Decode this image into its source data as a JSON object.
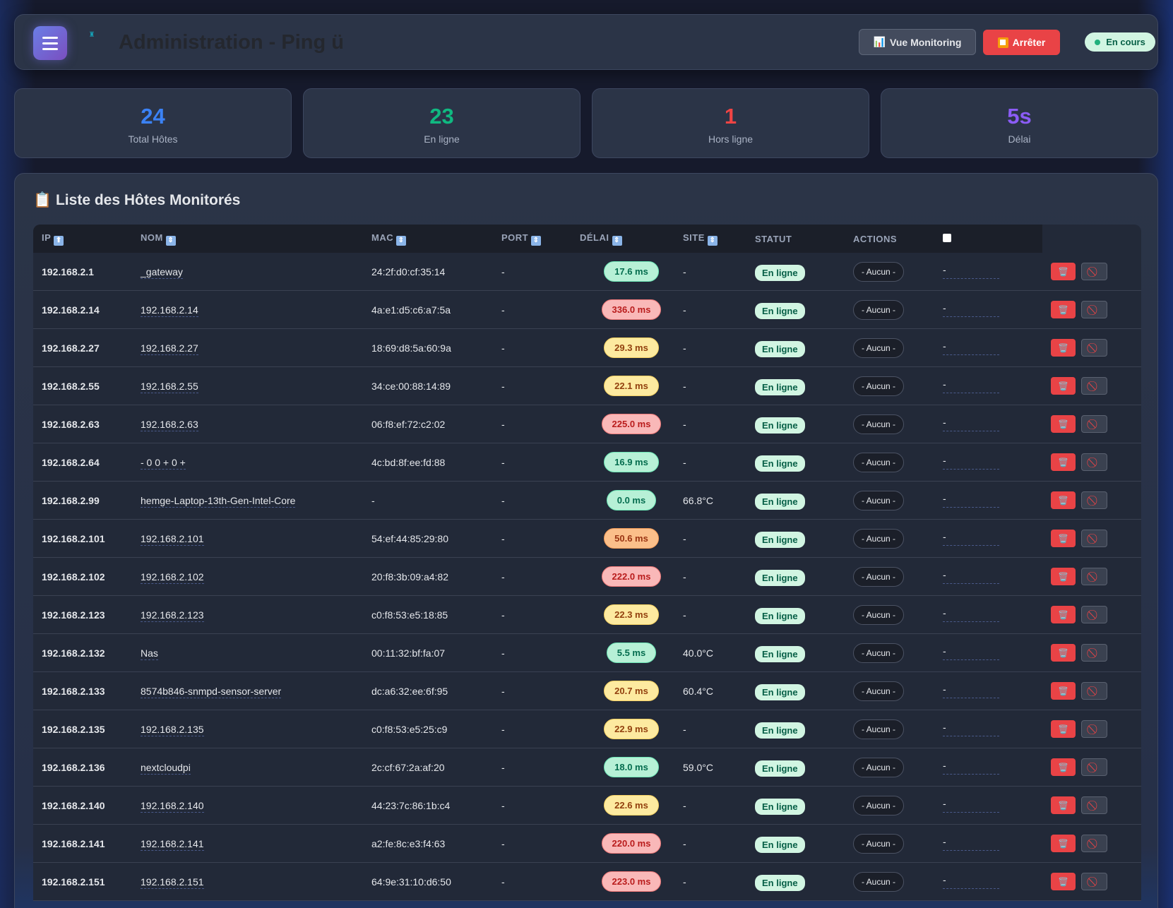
{
  "header": {
    "title": "Administration - Ping ü",
    "monitoring_label": "Vue Monitoring",
    "stop_label": "Arrêter",
    "status_label": "En cours"
  },
  "stats": [
    {
      "value": "24",
      "label": "Total Hôtes",
      "color": "#3b82f6"
    },
    {
      "value": "23",
      "label": "En ligne",
      "color": "#10b981"
    },
    {
      "value": "1",
      "label": "Hors ligne",
      "color": "#ef4444"
    },
    {
      "value": "5s",
      "label": "Délai",
      "color": "#8b5cf6"
    }
  ],
  "list": {
    "title": "📋 Liste des Hôtes Monitorés",
    "columns": [
      "IP",
      "NOM",
      "MAC",
      "PORT",
      "DÉLAI",
      "SITE",
      "STATUT",
      "ACTIONS"
    ],
    "rows": [
      {
        "ip": "192.168.2.1",
        "name": "_gateway",
        "mac": "24:2f:d0:cf:35:14",
        "port": "-",
        "latency": "17.6 ms",
        "level": "g",
        "site": "-",
        "status": "En ligne",
        "action": "- Aucun -",
        "note": "-"
      },
      {
        "ip": "192.168.2.14",
        "name": "192.168.2.14",
        "mac": "4a:e1:d5:c6:a7:5a",
        "port": "-",
        "latency": "336.0 ms",
        "level": "r",
        "site": "-",
        "status": "En ligne",
        "action": "- Aucun -",
        "note": "-"
      },
      {
        "ip": "192.168.2.27",
        "name": "192.168.2.27",
        "mac": "18:69:d8:5a:60:9a",
        "port": "-",
        "latency": "29.3 ms",
        "level": "y",
        "site": "-",
        "status": "En ligne",
        "action": "- Aucun -",
        "note": "-"
      },
      {
        "ip": "192.168.2.55",
        "name": "192.168.2.55",
        "mac": "34:ce:00:88:14:89",
        "port": "-",
        "latency": "22.1 ms",
        "level": "y",
        "site": "-",
        "status": "En ligne",
        "action": "- Aucun -",
        "note": "-"
      },
      {
        "ip": "192.168.2.63",
        "name": "192.168.2.63",
        "mac": "06:f8:ef:72:c2:02",
        "port": "-",
        "latency": "225.0 ms",
        "level": "r",
        "site": "-",
        "status": "En ligne",
        "action": "- Aucun -",
        "note": "-"
      },
      {
        "ip": "192.168.2.64",
        "name": "- 0 0 + 0 +",
        "mac": "4c:bd:8f:ee:fd:88",
        "port": "-",
        "latency": "16.9 ms",
        "level": "g",
        "site": "-",
        "status": "En ligne",
        "action": "- Aucun -",
        "note": "-"
      },
      {
        "ip": "192.168.2.99",
        "name": "hemge-Laptop-13th-Gen-Intel-Core",
        "mac": "-",
        "port": "-",
        "latency": "0.0 ms",
        "level": "g",
        "site": "66.8°C",
        "status": "En ligne",
        "action": "- Aucun -",
        "note": "-"
      },
      {
        "ip": "192.168.2.101",
        "name": "192.168.2.101",
        "mac": "54:ef:44:85:29:80",
        "port": "-",
        "latency": "50.6 ms",
        "level": "o",
        "site": "-",
        "status": "En ligne",
        "action": "- Aucun -",
        "note": "-"
      },
      {
        "ip": "192.168.2.102",
        "name": "192.168.2.102",
        "mac": "20:f8:3b:09:a4:82",
        "port": "-",
        "latency": "222.0 ms",
        "level": "r",
        "site": "-",
        "status": "En ligne",
        "action": "- Aucun -",
        "note": "-"
      },
      {
        "ip": "192.168.2.123",
        "name": "192.168.2.123",
        "mac": "c0:f8:53:e5:18:85",
        "port": "-",
        "latency": "22.3 ms",
        "level": "y",
        "site": "-",
        "status": "En ligne",
        "action": "- Aucun -",
        "note": "-"
      },
      {
        "ip": "192.168.2.132",
        "name": "Nas",
        "mac": "00:11:32:bf:fa:07",
        "port": "-",
        "latency": "5.5 ms",
        "level": "g",
        "site": "40.0°C",
        "status": "En ligne",
        "action": "- Aucun -",
        "note": "-"
      },
      {
        "ip": "192.168.2.133",
        "name": "8574b846-snmpd-sensor-server",
        "mac": "dc:a6:32:ee:6f:95",
        "port": "-",
        "latency": "20.7 ms",
        "level": "y",
        "site": "60.4°C",
        "status": "En ligne",
        "action": "- Aucun -",
        "note": "-"
      },
      {
        "ip": "192.168.2.135",
        "name": "192.168.2.135",
        "mac": "c0:f8:53:e5:25:c9",
        "port": "-",
        "latency": "22.9 ms",
        "level": "y",
        "site": "-",
        "status": "En ligne",
        "action": "- Aucun -",
        "note": "-"
      },
      {
        "ip": "192.168.2.136",
        "name": "nextcloudpi",
        "mac": "2c:cf:67:2a:af:20",
        "port": "-",
        "latency": "18.0 ms",
        "level": "g",
        "site": "59.0°C",
        "status": "En ligne",
        "action": "- Aucun -",
        "note": "-"
      },
      {
        "ip": "192.168.2.140",
        "name": "192.168.2.140",
        "mac": "44:23:7c:86:1b:c4",
        "port": "-",
        "latency": "22.6 ms",
        "level": "y",
        "site": "-",
        "status": "En ligne",
        "action": "- Aucun -",
        "note": "-"
      },
      {
        "ip": "192.168.2.141",
        "name": "192.168.2.141",
        "mac": "a2:fe:8c:e3:f4:63",
        "port": "-",
        "latency": "220.0 ms",
        "level": "r",
        "site": "-",
        "status": "En ligne",
        "action": "- Aucun -",
        "note": "-"
      },
      {
        "ip": "192.168.2.151",
        "name": "192.168.2.151",
        "mac": "64:9e:31:10:d6:50",
        "port": "-",
        "latency": "223.0 ms",
        "level": "r",
        "site": "-",
        "status": "En ligne",
        "action": "- Aucun -",
        "note": "-"
      }
    ]
  }
}
